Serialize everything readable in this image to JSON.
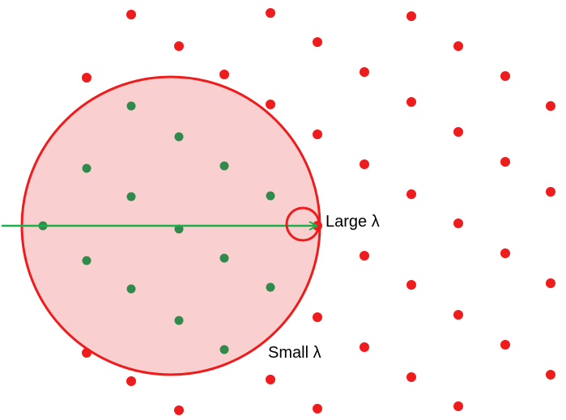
{
  "labels": {
    "large_lambda": "Large λ",
    "small_lambda": "Small λ"
  },
  "colors": {
    "outside_point": "#ee1c1c",
    "inside_point": "#2f8a4c",
    "circle_stroke": "#ee1c1c",
    "circle_fill": "#f9cfcf",
    "arrow": "#1bb04a"
  }
}
